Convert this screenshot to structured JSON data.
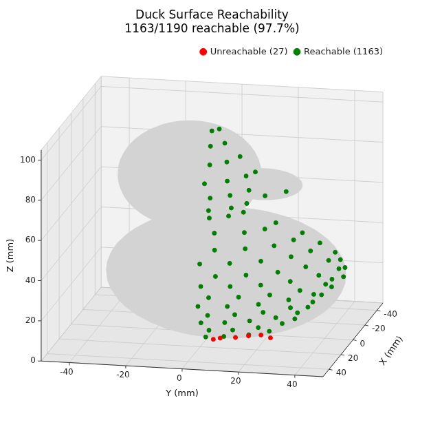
{
  "chart_data": {
    "type": "scatter3d",
    "title": "Duck Surface Reachability\n1163/1190 reachable (97.7%)",
    "x_label": "X (mm)",
    "y_label": "Y (mm)",
    "z_label": "Z (mm)",
    "xlim": [
      -50,
      50
    ],
    "ylim": [
      -50,
      50
    ],
    "zlim": [
      0,
      105
    ],
    "xticks": [
      -40,
      -20,
      0,
      20,
      40
    ],
    "yticks": [
      -40,
      -20,
      0,
      20,
      40
    ],
    "zticks": [
      0,
      20,
      40,
      60,
      80,
      100
    ],
    "grid": true,
    "legend": "upper right",
    "surface": {
      "color": "#d3d3d3",
      "ellipsoids": [
        {
          "center": [
            0,
            5,
            30
          ],
          "radii": [
            35,
            42,
            30
          ]
        },
        {
          "center": [
            0,
            -8,
            78
          ],
          "radii": [
            25,
            25,
            25
          ]
        },
        {
          "center": [
            0,
            18,
            75
          ],
          "radii": [
            10,
            14,
            7
          ]
        }
      ]
    },
    "series": [
      {
        "name": "Unreachable (27)",
        "color": "#ff0000",
        "marker": "circle",
        "points": [
          [
            10,
            5,
            1
          ],
          [
            8,
            10,
            1
          ],
          [
            5,
            14,
            1
          ],
          [
            3,
            18,
            1
          ],
          [
            12,
            3,
            1
          ],
          [
            6,
            22,
            1
          ]
        ]
      },
      {
        "name": "Reachable (1163)",
        "color": "#008000",
        "marker": "circle",
        "points": [
          [
            18,
            8,
            5
          ],
          [
            14,
            16,
            5
          ],
          [
            8,
            22,
            5
          ],
          [
            20,
            2,
            5
          ],
          [
            24,
            4,
            10
          ],
          [
            22,
            12,
            10
          ],
          [
            17,
            20,
            10
          ],
          [
            10,
            27,
            10
          ],
          [
            3,
            30,
            10
          ],
          [
            28,
            2,
            15
          ],
          [
            26,
            10,
            15
          ],
          [
            22,
            18,
            15
          ],
          [
            16,
            26,
            15
          ],
          [
            8,
            32,
            15
          ],
          [
            0,
            34,
            15
          ],
          [
            31,
            5,
            20
          ],
          [
            28,
            14,
            20
          ],
          [
            23,
            23,
            20
          ],
          [
            15,
            31,
            20
          ],
          [
            6,
            37,
            20
          ],
          [
            -4,
            38,
            20
          ],
          [
            33,
            2,
            25
          ],
          [
            31,
            12,
            25
          ],
          [
            26,
            22,
            25
          ],
          [
            18,
            31,
            25
          ],
          [
            9,
            38,
            25
          ],
          [
            -2,
            42,
            25
          ],
          [
            -12,
            40,
            25
          ],
          [
            34,
            6,
            30
          ],
          [
            31,
            16,
            30
          ],
          [
            26,
            26,
            30
          ],
          [
            18,
            35,
            30
          ],
          [
            8,
            42,
            30
          ],
          [
            -3,
            46,
            30
          ],
          [
            -15,
            44,
            30
          ],
          [
            33,
            3,
            35
          ],
          [
            31,
            13,
            35
          ],
          [
            27,
            23,
            35
          ],
          [
            20,
            32,
            35
          ],
          [
            10,
            40,
            35
          ],
          [
            0,
            45,
            35
          ],
          [
            -12,
            43,
            35
          ],
          [
            32,
            8,
            40
          ],
          [
            28,
            18,
            40
          ],
          [
            22,
            28,
            40
          ],
          [
            13,
            36,
            40
          ],
          [
            3,
            42,
            40
          ],
          [
            -8,
            42,
            40
          ],
          [
            30,
            2,
            45
          ],
          [
            27,
            12,
            45
          ],
          [
            22,
            22,
            45
          ],
          [
            14,
            31,
            45
          ],
          [
            5,
            36,
            45
          ],
          [
            -6,
            37,
            45
          ],
          [
            24,
            6,
            50
          ],
          [
            20,
            16,
            50
          ],
          [
            14,
            25,
            50
          ],
          [
            5,
            30,
            50
          ],
          [
            -5,
            31,
            50
          ],
          [
            15,
            4,
            55
          ],
          [
            12,
            14,
            55
          ],
          [
            6,
            20,
            55
          ],
          [
            -3,
            22,
            55
          ],
          [
            14,
            2,
            62
          ],
          [
            10,
            8,
            62
          ],
          [
            4,
            12,
            62
          ],
          [
            20,
            3,
            68
          ],
          [
            15,
            10,
            68
          ],
          [
            8,
            14,
            68
          ],
          [
            22,
            4,
            75
          ],
          [
            17,
            10,
            75
          ],
          [
            9,
            15,
            75
          ],
          [
            15,
            22,
            75
          ],
          [
            8,
            28,
            75
          ],
          [
            22,
            2,
            82
          ],
          [
            17,
            9,
            82
          ],
          [
            9,
            14,
            82
          ],
          [
            3,
            16,
            82
          ],
          [
            18,
            3,
            90
          ],
          [
            13,
            8,
            90
          ],
          [
            5,
            11,
            90
          ],
          [
            12,
            2,
            97
          ],
          [
            7,
            6,
            97
          ],
          [
            5,
            1,
            102
          ],
          [
            2,
            3,
            102
          ]
        ]
      }
    ]
  }
}
